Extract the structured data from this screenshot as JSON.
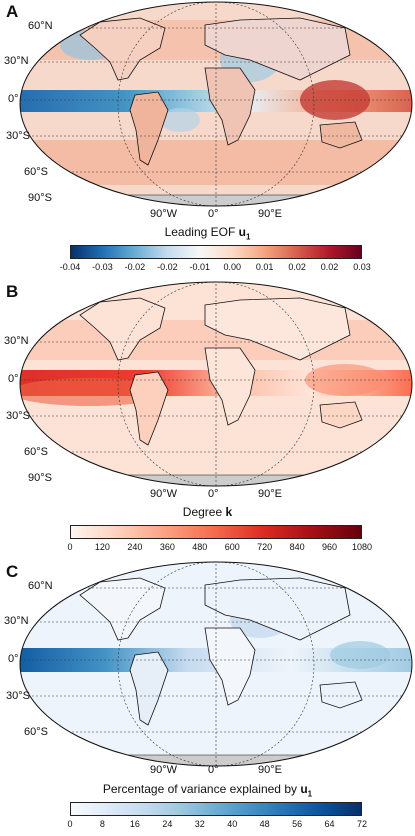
{
  "panels": [
    {
      "letter": "A",
      "caption_text": "Leading EOF ",
      "caption_bold": "u",
      "caption_sub": "1",
      "lat_labels": [
        "60°N",
        "30°N",
        "0°",
        "30°S",
        "60°S",
        "90°S"
      ],
      "lon_labels": [
        "90°W",
        "0°",
        "90°E"
      ],
      "colorbar_ticks": [
        "-0.04",
        "-0.03",
        "-0.02",
        "-0.02",
        "-0.01",
        "0.00",
        "0.01",
        "0.02",
        "0.02",
        "0.03"
      ],
      "colorbar_colors": [
        "#08306b",
        "#2171b5",
        "#6baed6",
        "#c6dbef",
        "#f7f7f7",
        "#fddbc7",
        "#f4a582",
        "#d6604d",
        "#b2182b",
        "#67001f"
      ]
    },
    {
      "letter": "B",
      "caption_text": "Degree ",
      "caption_bold": "k",
      "caption_sub": "",
      "lat_labels": [
        "30°N",
        "0°",
        "30°S",
        "60°S",
        "90°S"
      ],
      "lon_labels": [
        "90°W",
        "0°",
        "90°E"
      ],
      "colorbar_ticks": [
        "0",
        "120",
        "240",
        "360",
        "480",
        "600",
        "720",
        "840",
        "960",
        "1080"
      ],
      "colorbar_colors": [
        "#fff5f0",
        "#fdd0bb",
        "#fc9f81",
        "#f5694a",
        "#db2a21",
        "#a50f15",
        "#67000d"
      ]
    },
    {
      "letter": "C",
      "caption_text": "Percentage of variance explained by ",
      "caption_bold": "u",
      "caption_sub": "1",
      "lat_labels": [
        "60°N",
        "30°N",
        "0°",
        "30°S",
        "60°S"
      ],
      "lon_labels": [
        "90°W",
        "0°",
        "90°E"
      ],
      "colorbar_ticks": [
        "0",
        "8",
        "16",
        "24",
        "32",
        "40",
        "48",
        "56",
        "64",
        "72"
      ],
      "colorbar_colors": [
        "#f7fbff",
        "#deebf7",
        "#c6dbef",
        "#9ecae1",
        "#6baed6",
        "#4292c6",
        "#2171b5",
        "#08519c",
        "#08306b"
      ]
    }
  ]
}
